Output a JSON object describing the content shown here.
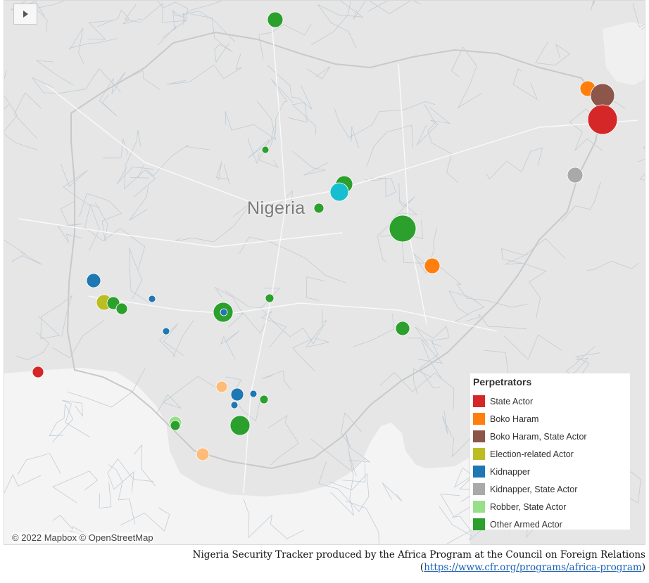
{
  "map": {
    "country_label": "Nigeria",
    "attribution": "© 2022 Mapbox  © OpenStreetMap",
    "play_icon": "play-icon"
  },
  "legend": {
    "title": "Perpetrators",
    "items": [
      {
        "label": "State Actor",
        "color": "#d62728"
      },
      {
        "label": "Boko Haram",
        "color": "#ff7f0e"
      },
      {
        "label": "Boko Haram, State Actor",
        "color": "#8c564b"
      },
      {
        "label": "Election-related Actor",
        "color": "#bcbd22"
      },
      {
        "label": "Kidnapper",
        "color": "#1f77b4"
      },
      {
        "label": "Kidnapper, State Actor",
        "color": "#a9a9a9"
      },
      {
        "label": "Robber, State Actor",
        "color": "#98df8a"
      },
      {
        "label": "Other Armed Actor",
        "color": "#2ca02c"
      }
    ]
  },
  "caption": {
    "text": "Nigeria Security Tracker produced by the Africa Program at the Council on Foreign Relations (",
    "link": "https://www.cfr.org/programs/africa-program",
    "close": ")"
  }
}
